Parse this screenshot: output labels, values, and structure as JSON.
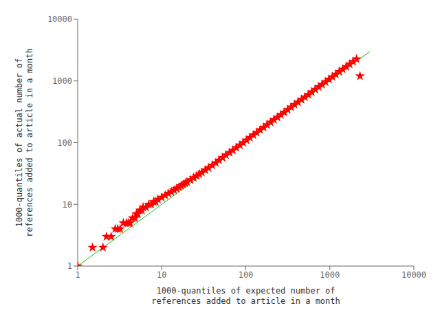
{
  "chart_data": {
    "type": "scatter",
    "xlabel": "1000-quantiles of expected number of\nreferences added to article in a month",
    "ylabel": "1000-quantiles of actual number of\nreferences added to article in a month",
    "xlim": [
      1,
      10000
    ],
    "ylim": [
      1,
      10000
    ],
    "xticks": [
      1,
      10,
      100,
      1000,
      10000
    ],
    "yticks": [
      1,
      10,
      100,
      1000,
      10000
    ],
    "log": true,
    "grid": false,
    "series": [
      {
        "type": "line",
        "color": "#00cc00",
        "x": [
          1.0,
          3000.0
        ],
        "values": [
          1.0,
          3000.0
        ]
      },
      {
        "type": "scatter",
        "color": "#ff0000",
        "marker": "star",
        "x": [
          1.0,
          1.5,
          2.0,
          2.2,
          2.5,
          2.8,
          3.0,
          3.2,
          3.5,
          3.8,
          4.0,
          4.2,
          4.5,
          4.8,
          5.0,
          5.2,
          5.5,
          5.8,
          6.0,
          6.5,
          7.0,
          7.5,
          8.0,
          8.5,
          9.0,
          10.0,
          11.0,
          12.0,
          13.0,
          14.0,
          15.0,
          16.0,
          17.0,
          18.0,
          19.0,
          20.0,
          22.0,
          24.0,
          26.0,
          28.0,
          30.0,
          33.0,
          36.0,
          40.0,
          44.0,
          48.0,
          53.0,
          58.0,
          64.0,
          70.0,
          77.0,
          85.0,
          93.0,
          102.0,
          112.0,
          123.0,
          135.0,
          148.0,
          163.0,
          179.0,
          197.0,
          216.0,
          238.0,
          261.0,
          287.0,
          315.0,
          346.0,
          380.0,
          418.0,
          460.0,
          505.0,
          555.0,
          610.0,
          670.0,
          736.0,
          809.0,
          889.0,
          977.0,
          1073.0,
          1179.0,
          1296.0,
          1424.0,
          1565.0,
          1720.0,
          1892.0,
          2079.0,
          2285.0
        ],
        "values": [
          1.0,
          2.0,
          2.0,
          3.0,
          3.0,
          4.0,
          4.0,
          4.0,
          5.0,
          5.0,
          5.0,
          5.0,
          6.0,
          6.0,
          7.0,
          7.0,
          8.0,
          8.0,
          9.0,
          9.0,
          10.0,
          10.0,
          11.0,
          11.0,
          12.0,
          13.0,
          14.0,
          15.0,
          16.0,
          17.0,
          18.0,
          19.0,
          20.0,
          21.0,
          22.0,
          23.0,
          25.0,
          27.0,
          29.0,
          31.0,
          33.0,
          36.0,
          39.0,
          43.0,
          47.0,
          52.0,
          57.0,
          63.0,
          69.0,
          75.0,
          83.0,
          91.0,
          100.0,
          110.0,
          121.0,
          133.0,
          146.0,
          161.0,
          177.0,
          195.0,
          214.0,
          235.0,
          258.0,
          283.0,
          311.0,
          342.0,
          376.0,
          413.0,
          454.0,
          499.0,
          548.0,
          602.0,
          662.0,
          728.0,
          800.0,
          879.0,
          966.0,
          1062.0,
          1167.0,
          1282.0,
          1408.0,
          1548.0,
          1701.0,
          1870.0,
          2056.0,
          2261.0,
          1200.0
        ]
      }
    ]
  }
}
